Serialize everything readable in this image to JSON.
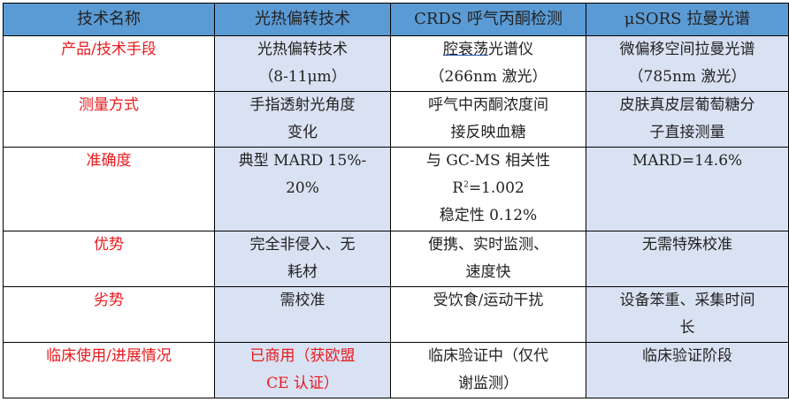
{
  "header": [
    "技术名称",
    "光热偏转技术",
    "CRDS 呼气丙酮检测",
    "μSORS 拉曼光谱"
  ],
  "rows": [
    {
      "label": "产品/技术手段",
      "c2": [
        "光热偏转技术",
        "（8-11μm）"
      ],
      "c3_underlined": "腔衰荡",
      "c3_rest": "光谱仪",
      "c3": [
        "（266nm 激光）"
      ],
      "c4": [
        "微偏移空间拉曼光谱",
        "（785nm 激光）"
      ]
    },
    {
      "label": "测量方式",
      "c2": [
        "手指透射光角度",
        "变化"
      ],
      "c3": [
        "呼气中丙酮浓度间",
        "接反映血糖"
      ],
      "c4": [
        "皮肤真皮层葡萄糖分",
        "子直接测量"
      ]
    },
    {
      "label": "准确度",
      "c2": [
        "典型 MARD 15%-",
        "20%"
      ],
      "c3": [
        "与 GC-MS 相关性"
      ],
      "c3_r_base": "R",
      "c3_r_sup": "2",
      "c3_r_rest": "=1.002",
      "c3_after": [
        "稳定性 0.12%"
      ],
      "c4": [
        "MARD=14.6%"
      ]
    },
    {
      "label": "优势",
      "c2": [
        "完全非侵入、无",
        "耗材"
      ],
      "c3": [
        "便携、实时监测、",
        "速度快"
      ],
      "c4": [
        "无需特殊校准"
      ]
    },
    {
      "label": "劣势",
      "c2": [
        "需校准"
      ],
      "c3": [
        "受饮食/运动干扰"
      ],
      "c4": [
        "设备笨重、采集时间",
        "长"
      ]
    },
    {
      "label": "临床使用/进展情况",
      "c2": [
        "已商用（获欧盟",
        "CE 认证）"
      ],
      "c3": [
        "临床验证中（仅代",
        "谢监测）"
      ],
      "c4": [
        "临床验证阶段"
      ]
    }
  ]
}
